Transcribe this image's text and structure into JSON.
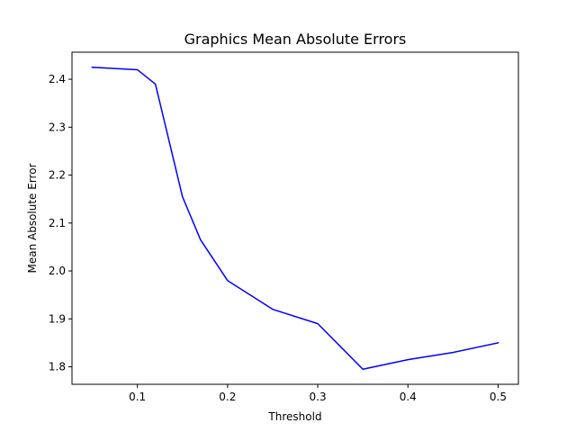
{
  "chart_data": {
    "type": "line",
    "title": "Graphics Mean Absolute Errors",
    "xlabel": "Threshold",
    "ylabel": "Mean Absolute Error",
    "xlim": [
      0.0275,
      0.5225
    ],
    "ylim": [
      1.7635,
      2.4565
    ],
    "xticks": [
      0.1,
      0.2,
      0.3,
      0.4,
      0.5
    ],
    "xtick_labels": [
      "0.1",
      "0.2",
      "0.3",
      "0.4",
      "0.5"
    ],
    "yticks": [
      1.8,
      1.9,
      2.0,
      2.1,
      2.2,
      2.3,
      2.4
    ],
    "ytick_labels": [
      "1.8",
      "1.9",
      "2.0",
      "2.1",
      "2.2",
      "2.3",
      "2.4"
    ],
    "grid": false,
    "series": [
      {
        "color": "#0000ff",
        "x": [
          0.05,
          0.1,
          0.12,
          0.15,
          0.17,
          0.2,
          0.25,
          0.3,
          0.35,
          0.4,
          0.45,
          0.5
        ],
        "y": [
          2.425,
          2.42,
          2.39,
          2.155,
          2.065,
          1.98,
          1.92,
          1.89,
          1.795,
          1.815,
          1.83,
          1.85
        ]
      }
    ]
  }
}
